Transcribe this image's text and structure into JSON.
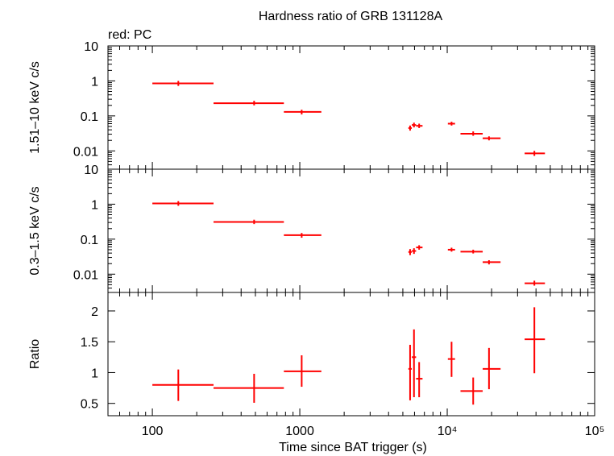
{
  "title": "Hardness ratio of GRB 131128A",
  "subtitle": "red: PC",
  "colors": {
    "data": "#ff0000",
    "axes": "#000000"
  },
  "xaxis": {
    "label": "Time since BAT trigger (s)",
    "scale": "log",
    "range": [
      50,
      100000
    ],
    "tick_labels": [
      "100",
      "1000",
      "10⁴",
      "10⁵"
    ]
  },
  "panels": [
    {
      "ylabel": "1.51–10 keV c/s",
      "scale": "log",
      "range": [
        0.003,
        10
      ],
      "tick_labels": [
        "10",
        "1",
        "0.1",
        "0.01"
      ]
    },
    {
      "ylabel": "0.3–1.5 keV c/s",
      "scale": "log",
      "range": [
        0.003,
        10
      ],
      "tick_labels": [
        "10",
        "1",
        "0.1",
        "0.01"
      ]
    },
    {
      "ylabel": "Ratio",
      "scale": "linear",
      "range": [
        0.3,
        2.3
      ],
      "tick_labels": [
        "2",
        "1.5",
        "1",
        "0.5"
      ]
    }
  ],
  "chart_data": {
    "type": "scatter",
    "title": "Hardness ratio of GRB 131128A",
    "xlabel": "Time since BAT trigger (s)",
    "xscale": "log",
    "xlim": [
      50,
      100000
    ],
    "legend_text": "red: PC",
    "series": [
      {
        "panel": 0,
        "ylim": [
          0.003,
          10
        ],
        "yscale": "log",
        "points": [
          {
            "x": 150,
            "xlo": 100,
            "xhi": 260,
            "y": 0.85,
            "ylo": 0.72,
            "yhi": 1.0
          },
          {
            "x": 490,
            "xlo": 260,
            "xhi": 780,
            "y": 0.23,
            "ylo": 0.2,
            "yhi": 0.27
          },
          {
            "x": 1030,
            "xlo": 780,
            "xhi": 1400,
            "y": 0.13,
            "ylo": 0.11,
            "yhi": 0.15
          },
          {
            "x": 5600,
            "xlo": 5450,
            "xhi": 5750,
            "y": 0.045,
            "ylo": 0.038,
            "yhi": 0.053
          },
          {
            "x": 5950,
            "xlo": 5750,
            "xhi": 6150,
            "y": 0.055,
            "ylo": 0.047,
            "yhi": 0.064
          },
          {
            "x": 6450,
            "xlo": 6150,
            "xhi": 6800,
            "y": 0.052,
            "ylo": 0.045,
            "yhi": 0.06
          },
          {
            "x": 10700,
            "xlo": 10100,
            "xhi": 11300,
            "y": 0.06,
            "ylo": 0.053,
            "yhi": 0.068
          },
          {
            "x": 15000,
            "xlo": 12300,
            "xhi": 17400,
            "y": 0.031,
            "ylo": 0.027,
            "yhi": 0.036
          },
          {
            "x": 19200,
            "xlo": 17400,
            "xhi": 23000,
            "y": 0.023,
            "ylo": 0.02,
            "yhi": 0.026
          },
          {
            "x": 39000,
            "xlo": 33500,
            "xhi": 46000,
            "y": 0.0085,
            "ylo": 0.0072,
            "yhi": 0.01
          }
        ]
      },
      {
        "panel": 1,
        "ylim": [
          0.003,
          10
        ],
        "yscale": "log",
        "points": [
          {
            "x": 150,
            "xlo": 100,
            "xhi": 260,
            "y": 1.05,
            "ylo": 0.9,
            "yhi": 1.22
          },
          {
            "x": 490,
            "xlo": 260,
            "xhi": 780,
            "y": 0.31,
            "ylo": 0.27,
            "yhi": 0.36
          },
          {
            "x": 1030,
            "xlo": 780,
            "xhi": 1400,
            "y": 0.13,
            "ylo": 0.11,
            "yhi": 0.15
          },
          {
            "x": 5600,
            "xlo": 5450,
            "xhi": 5750,
            "y": 0.043,
            "ylo": 0.035,
            "yhi": 0.052
          },
          {
            "x": 5950,
            "xlo": 5750,
            "xhi": 6150,
            "y": 0.046,
            "ylo": 0.038,
            "yhi": 0.055
          },
          {
            "x": 6450,
            "xlo": 6150,
            "xhi": 6800,
            "y": 0.058,
            "ylo": 0.05,
            "yhi": 0.067
          },
          {
            "x": 10700,
            "xlo": 10100,
            "xhi": 11300,
            "y": 0.05,
            "ylo": 0.044,
            "yhi": 0.057
          },
          {
            "x": 15000,
            "xlo": 12300,
            "xhi": 17400,
            "y": 0.044,
            "ylo": 0.039,
            "yhi": 0.05
          },
          {
            "x": 19200,
            "xlo": 17400,
            "xhi": 23000,
            "y": 0.022,
            "ylo": 0.019,
            "yhi": 0.025
          },
          {
            "x": 39000,
            "xlo": 33500,
            "xhi": 46000,
            "y": 0.0055,
            "ylo": 0.0047,
            "yhi": 0.0065
          }
        ]
      },
      {
        "panel": 2,
        "ylim": [
          0.3,
          2.3
        ],
        "yscale": "linear",
        "points": [
          {
            "x": 150,
            "xlo": 100,
            "xhi": 260,
            "y": 0.8,
            "ylo": 0.54,
            "yhi": 1.05
          },
          {
            "x": 490,
            "xlo": 260,
            "xhi": 780,
            "y": 0.75,
            "ylo": 0.51,
            "yhi": 0.98
          },
          {
            "x": 1030,
            "xlo": 780,
            "xhi": 1400,
            "y": 1.02,
            "ylo": 0.77,
            "yhi": 1.28
          },
          {
            "x": 5600,
            "xlo": 5450,
            "xhi": 5750,
            "y": 1.06,
            "ylo": 0.55,
            "yhi": 1.45
          },
          {
            "x": 5950,
            "xlo": 5750,
            "xhi": 6150,
            "y": 1.25,
            "ylo": 0.6,
            "yhi": 1.7
          },
          {
            "x": 6450,
            "xlo": 6150,
            "xhi": 6800,
            "y": 0.9,
            "ylo": 0.6,
            "yhi": 1.17
          },
          {
            "x": 10700,
            "xlo": 10100,
            "xhi": 11300,
            "y": 1.22,
            "ylo": 0.93,
            "yhi": 1.5
          },
          {
            "x": 15000,
            "xlo": 12300,
            "xhi": 17400,
            "y": 0.7,
            "ylo": 0.48,
            "yhi": 0.92
          },
          {
            "x": 19200,
            "xlo": 17400,
            "xhi": 23000,
            "y": 1.06,
            "ylo": 0.73,
            "yhi": 1.4
          },
          {
            "x": 39000,
            "xlo": 33500,
            "xhi": 46000,
            "y": 1.54,
            "ylo": 0.99,
            "yhi": 2.06
          }
        ]
      }
    ]
  }
}
